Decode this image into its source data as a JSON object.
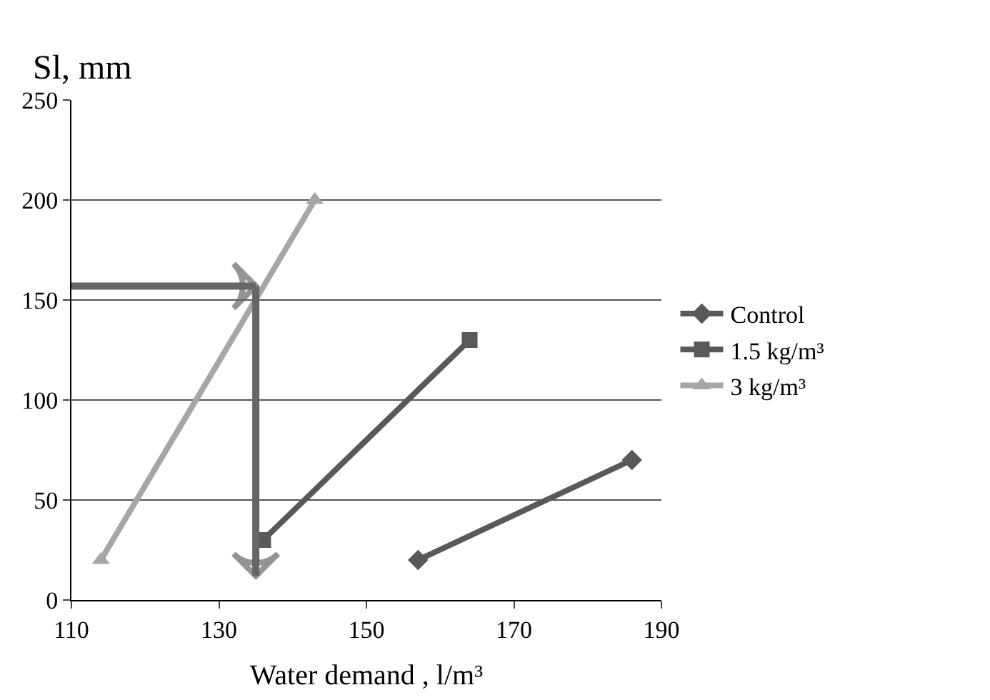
{
  "chart_data": {
    "type": "line",
    "ylabel": "Sl, mm",
    "xlabel": "Water demand , l/m³",
    "series": [
      {
        "name": "Control",
        "color": "#595959",
        "x": [
          157,
          186
        ],
        "values": [
          20,
          70
        ],
        "marker": "diamond"
      },
      {
        "name": "1.5 kg/m³",
        "color": "#595959",
        "x": [
          136,
          164
        ],
        "values": [
          30,
          130
        ],
        "marker": "square"
      },
      {
        "name": "3 kg/m³",
        "color": "#a6a6a6",
        "x": [
          114,
          143
        ],
        "values": [
          20,
          200
        ],
        "marker": "triangle"
      },
      {
        "color": "#666666",
        "x": [
          110,
          135
        ],
        "values": [
          157,
          157
        ],
        "marker": "none"
      },
      {
        "color": "#666666",
        "x": [
          135,
          135
        ],
        "values": [
          157,
          12
        ],
        "marker": "none"
      }
    ],
    "xlim": [
      110,
      190
    ],
    "xticks": [
      110,
      130,
      150,
      170,
      190
    ],
    "ylim": [
      0,
      250
    ],
    "yticks": [
      0,
      50,
      100,
      150,
      200,
      250
    ],
    "grid": "y",
    "legend": "right"
  }
}
